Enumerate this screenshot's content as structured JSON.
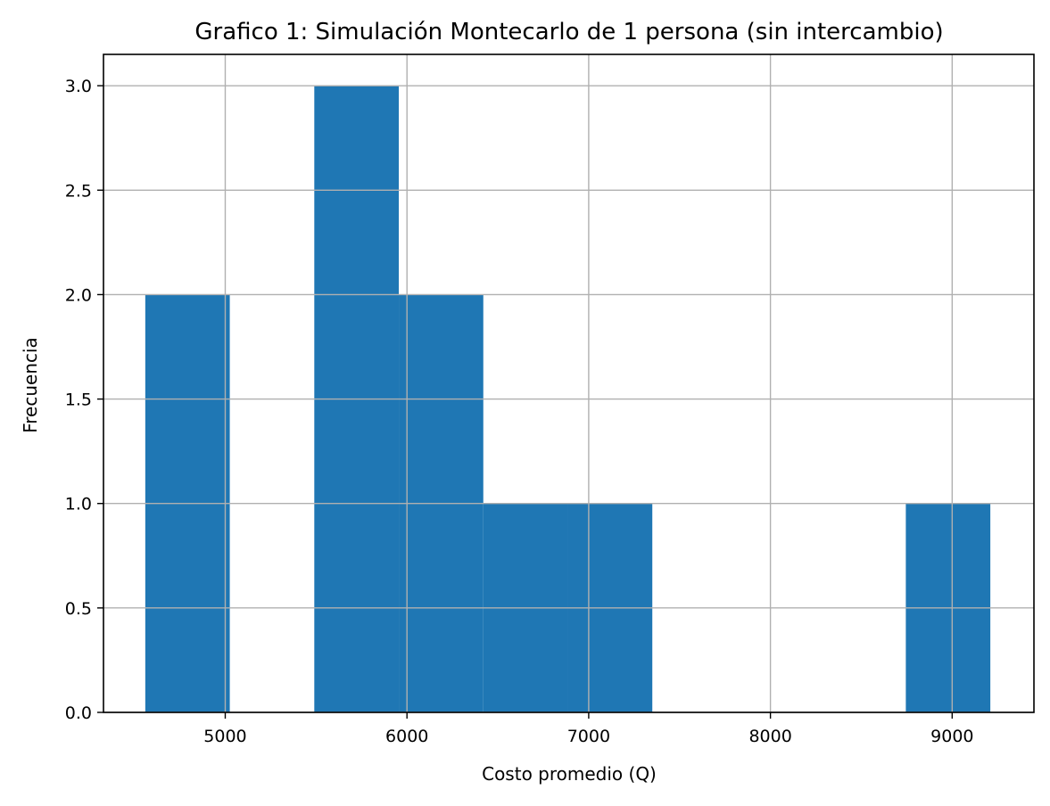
{
  "chart_data": {
    "type": "bar",
    "title": "Grafico 1: Simulación Montecarlo de 1 persona (sin intercambio)",
    "xlabel": "Costo promedio (Q)",
    "ylabel": "Frecuencia",
    "xlim": [
      4330,
      9450
    ],
    "ylim": [
      0,
      3.15
    ],
    "xticks": [
      5000,
      6000,
      7000,
      8000,
      9000
    ],
    "xtick_labels": [
      "5000",
      "6000",
      "7000",
      "8000",
      "9000"
    ],
    "yticks": [
      0.0,
      0.5,
      1.0,
      1.5,
      2.0,
      2.5,
      3.0
    ],
    "ytick_labels": [
      "0.0",
      "0.5",
      "1.0",
      "1.5",
      "2.0",
      "2.5",
      "3.0"
    ],
    "grid": true,
    "bar_color": "#1f77b4",
    "bins": [
      {
        "x0": 4560,
        "x1": 5025,
        "count": 2
      },
      {
        "x0": 5025,
        "x1": 5490,
        "count": 0
      },
      {
        "x0": 5490,
        "x1": 5955,
        "count": 3
      },
      {
        "x0": 5955,
        "x1": 6420,
        "count": 2
      },
      {
        "x0": 6420,
        "x1": 6885,
        "count": 1
      },
      {
        "x0": 6885,
        "x1": 7350,
        "count": 1
      },
      {
        "x0": 7350,
        "x1": 7815,
        "count": 0
      },
      {
        "x0": 7815,
        "x1": 8280,
        "count": 0
      },
      {
        "x0": 8280,
        "x1": 8745,
        "count": 0
      },
      {
        "x0": 8745,
        "x1": 9210,
        "count": 1
      }
    ]
  }
}
